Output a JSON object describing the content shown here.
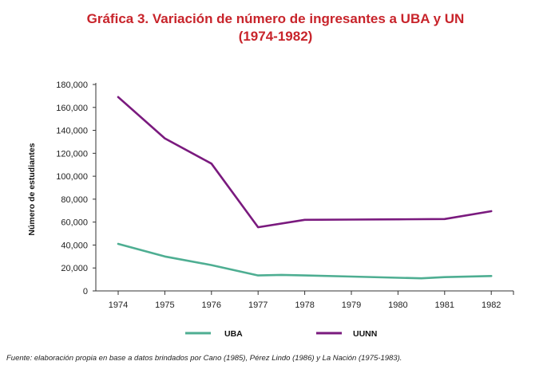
{
  "title_line1": "Gráfica 3. Variación de número de ingresantes a UBA y UN",
  "title_line2": "(1974-1982)",
  "source": "Fuente: elaboración propia en base a datos brindados por Cano (1985), Pérez Lindo (1986) y La Nación (1975-1983).",
  "chart_data": {
    "type": "line",
    "title": "Gráfica 3. Variación de número de ingresantes a UBA y UN (1974-1982)",
    "xlabel": "",
    "ylabel": "Número de estudiantes",
    "x_ticks": [
      "1974",
      "1975",
      "1976",
      "1977",
      "1978",
      "1979",
      "1980",
      "1981",
      "1982"
    ],
    "y_ticks": [
      "0",
      "20,000",
      "40,000",
      "60,000",
      "80,000",
      "100,000",
      "120,000",
      "140,000",
      "160,000",
      "180,000"
    ],
    "ylim": [
      0,
      180000
    ],
    "grid": false,
    "legend_position": "bottom",
    "series": [
      {
        "name": "UBA",
        "color": "#4eae92",
        "points": [
          [
            1974,
            41000
          ],
          [
            1975,
            30000
          ],
          [
            1976,
            22500
          ],
          [
            1977,
            13500
          ],
          [
            1977.5,
            14000
          ],
          [
            1978,
            13500
          ],
          [
            1979,
            12500
          ],
          [
            1980,
            11500
          ],
          [
            1980.5,
            11000
          ],
          [
            1981,
            12000
          ],
          [
            1982,
            13000
          ]
        ]
      },
      {
        "name": "UUNN",
        "color": "#7a1a7e",
        "points": [
          [
            1974,
            169000
          ],
          [
            1975,
            133000
          ],
          [
            1976,
            111000
          ],
          [
            1977,
            55500
          ],
          [
            1978,
            62000
          ],
          [
            1979,
            62200
          ],
          [
            1980,
            62400
          ],
          [
            1981,
            62700
          ],
          [
            1982,
            69500
          ]
        ]
      }
    ]
  }
}
